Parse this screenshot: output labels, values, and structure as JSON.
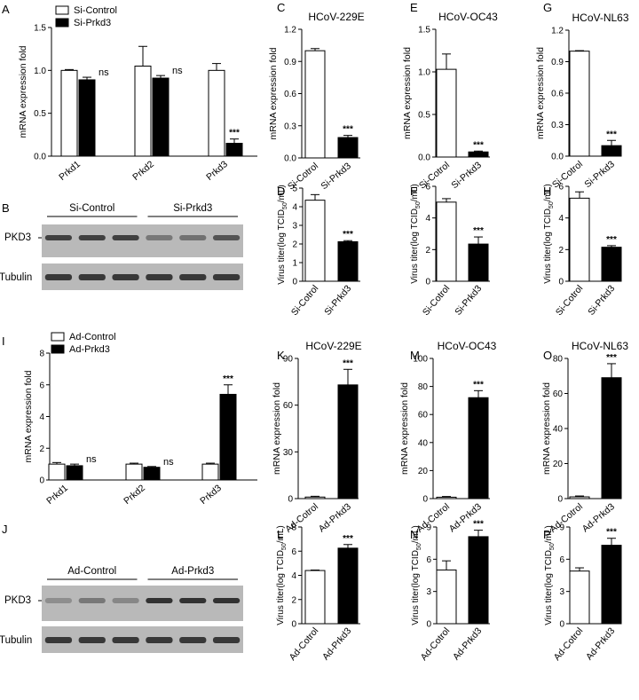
{
  "panel_letters": [
    "A",
    "B",
    "C",
    "D",
    "E",
    "F",
    "G",
    "H",
    "I",
    "J",
    "K",
    "L",
    "M",
    "N",
    "O",
    "P"
  ],
  "labels": {
    "mrna_fold": "mRNA expression fold",
    "virus_titer": "Virus titer(log TCID",
    "subscript": "50",
    "unit": "/mL)",
    "pkd3": "PKD3",
    "tubulin": "Tubulin",
    "si_control": "Si-Control",
    "si_prkd3": "Si-Prkd3",
    "ad_control": "Ad-Control",
    "ad_prkd3": "Ad-Prkd3"
  },
  "colors": {
    "control": "#ffffff",
    "treated": "#000000",
    "blot_bg": "#b9b9b9",
    "band": "#2a2a2a"
  },
  "chart_data": [
    {
      "id": "A",
      "type": "bar",
      "categories": [
        "Prkd1",
        "Prkd2",
        "Prkd3"
      ],
      "ylabel": "mRNA expression fold",
      "ylim": [
        0,
        1.5
      ],
      "yticks": [
        "0.0",
        "0.5",
        "1.0",
        "1.5"
      ],
      "series": [
        {
          "name": "Si-Control",
          "values": [
            1.0,
            1.05,
            1.0
          ],
          "errors": [
            0.01,
            0.23,
            0.08
          ]
        },
        {
          "name": "Si-Prkd3",
          "values": [
            0.89,
            0.91,
            0.15
          ],
          "errors": [
            0.03,
            0.03,
            0.05
          ]
        }
      ],
      "annotations": [
        "ns",
        "ns",
        "***"
      ],
      "legend": "top-left"
    },
    {
      "id": "C",
      "type": "bar",
      "title": "HCoV-229E",
      "categories": [
        "Si-Cotrol",
        "Si-Prkd3"
      ],
      "ylabel": "mRNA expression fold",
      "ylim": [
        0,
        1.2
      ],
      "yticks": [
        "0.0",
        "0.3",
        "0.6",
        "0.9",
        "1.2"
      ],
      "values": [
        1.0,
        0.19
      ],
      "errors": [
        0.02,
        0.02
      ],
      "annotations": [
        "",
        "***"
      ]
    },
    {
      "id": "E",
      "type": "bar",
      "title": "HCoV-OC43",
      "categories": [
        "Si-Cotrol",
        "Si-Prkd3"
      ],
      "ylabel": "mRNA expression fold",
      "ylim": [
        0,
        1.5
      ],
      "yticks": [
        "0.0",
        "0.5",
        "1.0",
        "1.5"
      ],
      "values": [
        1.03,
        0.06
      ],
      "errors": [
        0.18,
        0.01
      ],
      "annotations": [
        "",
        "***"
      ]
    },
    {
      "id": "G",
      "type": "bar",
      "title": "HCoV-NL63",
      "categories": [
        "Si-Cotrol",
        "Si-Prkd3"
      ],
      "ylabel": "mRNA expression fold",
      "ylim": [
        0,
        1.2
      ],
      "yticks": [
        "0.0",
        "0.3",
        "0.6",
        "0.9",
        "1.2"
      ],
      "values": [
        1.0,
        0.1
      ],
      "errors": [
        0.005,
        0.05
      ],
      "annotations": [
        "",
        "***"
      ]
    },
    {
      "id": "D",
      "type": "bar",
      "categories": [
        "Si-Cotrol",
        "Si-Prkd3"
      ],
      "ylabel": "Virus titer(log TCID50/mL)",
      "ylim": [
        0,
        5
      ],
      "yticks": [
        "0",
        "1",
        "2",
        "3",
        "4",
        "5"
      ],
      "values": [
        4.35,
        2.12
      ],
      "errors": [
        0.3,
        0.06
      ],
      "annotations": [
        "",
        "***"
      ]
    },
    {
      "id": "F",
      "type": "bar",
      "categories": [
        "Si-Cotrol",
        "Si-Prkd3"
      ],
      "ylabel": "Virus titer(log TCID50/mL)",
      "ylim": [
        0,
        6
      ],
      "yticks": [
        "0",
        "2",
        "4",
        "6"
      ],
      "values": [
        5.0,
        2.35
      ],
      "errors": [
        0.22,
        0.45
      ],
      "annotations": [
        "",
        "***"
      ]
    },
    {
      "id": "H",
      "type": "bar",
      "categories": [
        "Si-Cotrol",
        "Si-Prkd3"
      ],
      "ylabel": "Virus titer(log TCID50/mL)",
      "ylim": [
        0,
        6
      ],
      "yticks": [
        "0",
        "2",
        "4",
        "6"
      ],
      "values": [
        5.25,
        2.15
      ],
      "errors": [
        0.4,
        0.1
      ],
      "annotations": [
        "",
        "***"
      ]
    },
    {
      "id": "I",
      "type": "bar",
      "categories": [
        "Prkd1",
        "Prkd2",
        "Prkd3"
      ],
      "ylabel": "mRNA expression fold",
      "ylim": [
        0,
        8
      ],
      "yticks": [
        "0",
        "2",
        "4",
        "6",
        "8"
      ],
      "series": [
        {
          "name": "Ad-Control",
          "values": [
            1.0,
            1.0,
            1.0
          ],
          "errors": [
            0.1,
            0.06,
            0.06
          ]
        },
        {
          "name": "Ad-Prkd3",
          "values": [
            0.9,
            0.8,
            5.4
          ],
          "errors": [
            0.1,
            0.05,
            0.6
          ]
        }
      ],
      "annotations": [
        "ns",
        "ns",
        "***"
      ],
      "legend": "top-left"
    },
    {
      "id": "K",
      "type": "bar",
      "title": "HCoV-229E",
      "categories": [
        "Ad-Cotrol",
        "Ad-Prkd3"
      ],
      "ylabel": "mRNA expression fold",
      "ylim": [
        0,
        90
      ],
      "yticks": [
        "0",
        "30",
        "60",
        "90"
      ],
      "values": [
        1.0,
        73
      ],
      "errors": [
        0.5,
        10
      ],
      "annotations": [
        "",
        "***"
      ]
    },
    {
      "id": "M",
      "type": "bar",
      "title": "HCoV-OC43",
      "categories": [
        "Ad-Cotrol",
        "Ad-Prkd3"
      ],
      "ylabel": "mRNA expression fold",
      "ylim": [
        0,
        100
      ],
      "yticks": [
        "0",
        "20",
        "40",
        "60",
        "80",
        "100"
      ],
      "values": [
        1.0,
        72
      ],
      "errors": [
        0.5,
        5
      ],
      "annotations": [
        "",
        "***"
      ]
    },
    {
      "id": "O",
      "type": "bar",
      "title": "HCoV-NL63",
      "categories": [
        "Ad-Cotrol",
        "Ad-Prkd3"
      ],
      "ylabel": "mRNA expression fold",
      "ylim": [
        0,
        80
      ],
      "yticks": [
        "0",
        "20",
        "40",
        "60",
        "80"
      ],
      "values": [
        1.0,
        69
      ],
      "errors": [
        0.5,
        8
      ],
      "annotations": [
        "",
        "***"
      ]
    },
    {
      "id": "L",
      "type": "bar",
      "categories": [
        "Ad-Cotrol",
        "Ad-Prkd3"
      ],
      "ylabel": "Virus titer(log TCID50/mL)",
      "ylim": [
        0,
        8
      ],
      "yticks": [
        "0",
        "2",
        "4",
        "6",
        "8"
      ],
      "values": [
        4.4,
        6.25
      ],
      "errors": [
        0.04,
        0.3
      ],
      "annotations": [
        "",
        "***"
      ]
    },
    {
      "id": "N",
      "type": "bar",
      "categories": [
        "Ad-Cotrol",
        "Ad-Prkd3"
      ],
      "ylabel": "Virus titer(log TCID50/mL)",
      "ylim": [
        0,
        9
      ],
      "yticks": [
        "0",
        "3",
        "6",
        "9"
      ],
      "values": [
        5.0,
        8.1
      ],
      "errors": [
        0.85,
        0.6
      ],
      "annotations": [
        "",
        "***"
      ]
    },
    {
      "id": "P",
      "type": "bar",
      "categories": [
        "Ad-Cotrol",
        "Ad-Prkd3"
      ],
      "ylabel": "Virus titer(log TCID50/mL)",
      "ylim": [
        0,
        9
      ],
      "yticks": [
        "0",
        "3",
        "6",
        "9"
      ],
      "values": [
        4.9,
        7.3
      ],
      "errors": [
        0.3,
        0.65
      ],
      "annotations": [
        "",
        "***"
      ]
    }
  ]
}
